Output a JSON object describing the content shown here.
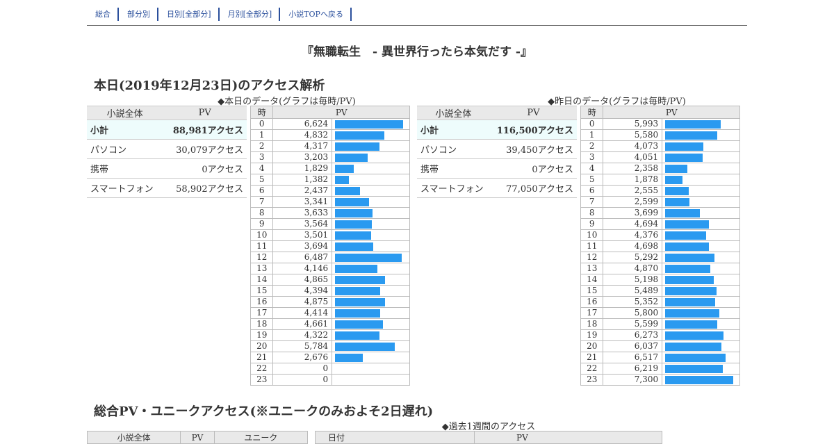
{
  "nav": {
    "items": [
      {
        "label": "総合"
      },
      {
        "label": "部分別"
      },
      {
        "label": "日別[全部分]"
      },
      {
        "label": "月別[全部分]"
      },
      {
        "label": "小説TOPへ戻る"
      }
    ]
  },
  "title": "『無職転生　- 異世界行ったら本気だす -』",
  "today_section": {
    "heading": "本日(2019年12月23日)のアクセス解析",
    "today_caption": "◆本日のデータ(グラフは毎時/PV)",
    "yesterday_caption": "◆昨日のデータ(グラフは毎時/PV)"
  },
  "today": {
    "summary_headers": [
      "小説全体",
      "PV"
    ],
    "summary_rows": [
      {
        "label": "小計",
        "value": "88,981アクセス"
      },
      {
        "label": "パソコン",
        "value": "30,079アクセス"
      },
      {
        "label": "携帯",
        "value": "0アクセス"
      },
      {
        "label": "スマートフォン",
        "value": "58,902アクセス"
      }
    ],
    "hourly_headers": [
      "時",
      "PV"
    ],
    "hourly": [
      {
        "hour": "0",
        "pv": "6,624",
        "value": 6624
      },
      {
        "hour": "1",
        "pv": "4,832",
        "value": 4832
      },
      {
        "hour": "2",
        "pv": "4,317",
        "value": 4317
      },
      {
        "hour": "3",
        "pv": "3,203",
        "value": 3203
      },
      {
        "hour": "4",
        "pv": "1,829",
        "value": 1829
      },
      {
        "hour": "5",
        "pv": "1,382",
        "value": 1382
      },
      {
        "hour": "6",
        "pv": "2,437",
        "value": 2437
      },
      {
        "hour": "7",
        "pv": "3,341",
        "value": 3341
      },
      {
        "hour": "8",
        "pv": "3,633",
        "value": 3633
      },
      {
        "hour": "9",
        "pv": "3,564",
        "value": 3564
      },
      {
        "hour": "10",
        "pv": "3,501",
        "value": 3501
      },
      {
        "hour": "11",
        "pv": "3,694",
        "value": 3694
      },
      {
        "hour": "12",
        "pv": "6,487",
        "value": 6487
      },
      {
        "hour": "13",
        "pv": "4,146",
        "value": 4146
      },
      {
        "hour": "14",
        "pv": "4,865",
        "value": 4865
      },
      {
        "hour": "15",
        "pv": "4,394",
        "value": 4394
      },
      {
        "hour": "16",
        "pv": "4,875",
        "value": 4875
      },
      {
        "hour": "17",
        "pv": "4,414",
        "value": 4414
      },
      {
        "hour": "18",
        "pv": "4,661",
        "value": 4661
      },
      {
        "hour": "19",
        "pv": "4,322",
        "value": 4322
      },
      {
        "hour": "20",
        "pv": "5,784",
        "value": 5784
      },
      {
        "hour": "21",
        "pv": "2,676",
        "value": 2676
      },
      {
        "hour": "22",
        "pv": "0",
        "value": 0
      },
      {
        "hour": "23",
        "pv": "0",
        "value": 0
      }
    ]
  },
  "yesterday": {
    "summary_headers": [
      "小説全体",
      "PV"
    ],
    "summary_rows": [
      {
        "label": "小計",
        "value": "116,500アクセス"
      },
      {
        "label": "パソコン",
        "value": "39,450アクセス"
      },
      {
        "label": "携帯",
        "value": "0アクセス"
      },
      {
        "label": "スマートフォン",
        "value": "77,050アクセス"
      }
    ],
    "hourly_headers": [
      "時",
      "PV"
    ],
    "hourly": [
      {
        "hour": "0",
        "pv": "5,993",
        "value": 5993
      },
      {
        "hour": "1",
        "pv": "5,580",
        "value": 5580
      },
      {
        "hour": "2",
        "pv": "4,073",
        "value": 4073
      },
      {
        "hour": "3",
        "pv": "4,051",
        "value": 4051
      },
      {
        "hour": "4",
        "pv": "2,358",
        "value": 2358
      },
      {
        "hour": "5",
        "pv": "1,878",
        "value": 1878
      },
      {
        "hour": "6",
        "pv": "2,555",
        "value": 2555
      },
      {
        "hour": "7",
        "pv": "2,599",
        "value": 2599
      },
      {
        "hour": "8",
        "pv": "3,699",
        "value": 3699
      },
      {
        "hour": "9",
        "pv": "4,694",
        "value": 4694
      },
      {
        "hour": "10",
        "pv": "4,376",
        "value": 4376
      },
      {
        "hour": "11",
        "pv": "4,698",
        "value": 4698
      },
      {
        "hour": "12",
        "pv": "5,292",
        "value": 5292
      },
      {
        "hour": "13",
        "pv": "4,870",
        "value": 4870
      },
      {
        "hour": "14",
        "pv": "5,198",
        "value": 5198
      },
      {
        "hour": "15",
        "pv": "5,489",
        "value": 5489
      },
      {
        "hour": "16",
        "pv": "5,352",
        "value": 5352
      },
      {
        "hour": "17",
        "pv": "5,800",
        "value": 5800
      },
      {
        "hour": "18",
        "pv": "5,599",
        "value": 5599
      },
      {
        "hour": "19",
        "pv": "6,273",
        "value": 6273
      },
      {
        "hour": "20",
        "pv": "6,037",
        "value": 6037
      },
      {
        "hour": "21",
        "pv": "6,517",
        "value": 6517
      },
      {
        "hour": "22",
        "pv": "6,219",
        "value": 6219
      },
      {
        "hour": "23",
        "pv": "7,300",
        "value": 7300
      }
    ]
  },
  "total_section": {
    "heading": "総合PV・ユニークアクセス(※ユニークのみおよそ2日遅れ)",
    "week_caption": "◆過去1週間のアクセス",
    "summary_headers": [
      "小説全体",
      "PV",
      "ユニーク"
    ],
    "week_headers": [
      "日付",
      "PV"
    ]
  },
  "colors": {
    "bar": "#2a9af0",
    "link": "#2a4f9c",
    "header_bg": "#e9e9e9",
    "subtotal_bg": "#eefcfc"
  }
}
